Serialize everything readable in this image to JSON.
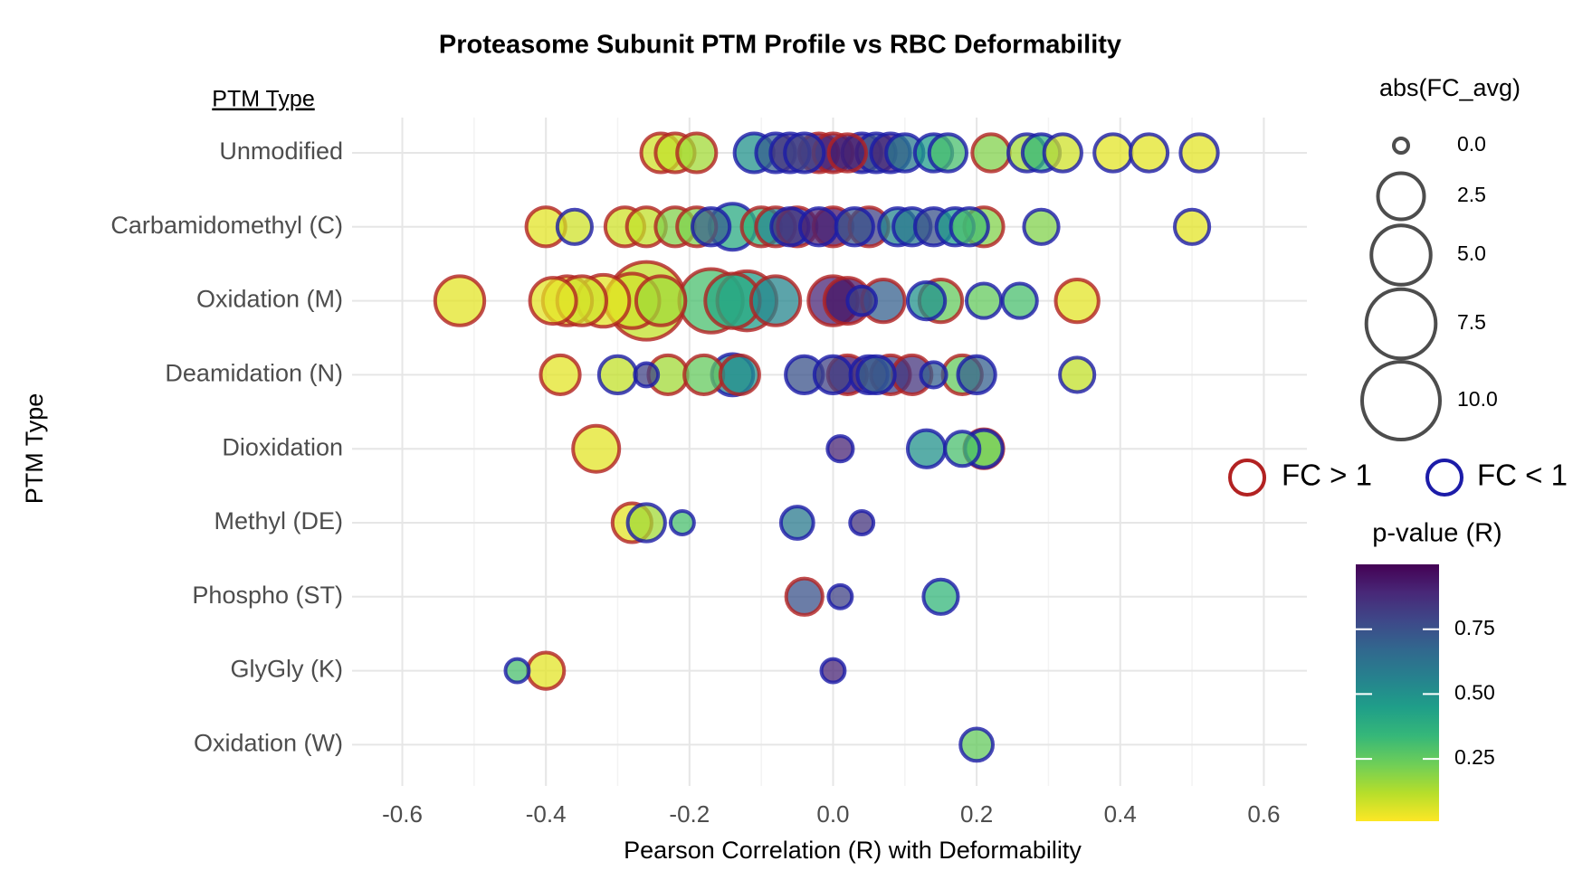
{
  "chart_data": {
    "type": "bubble",
    "title": "Proteasome Subunit PTM Profile vs RBC Deformability",
    "x_label": "Pearson Correlation (R) with Deformability",
    "y_label": "PTM Type",
    "category_header": "PTM Type",
    "categories": [
      "Unmodified",
      "Carbamidomethyl (C)",
      "Oxidation (M)",
      "Deamidation (N)",
      "Dioxidation",
      "Methyl (DE)",
      "Phospho (ST)",
      "GlyGly (K)",
      "Oxidation (W)"
    ],
    "xlim": [
      -0.67,
      0.66
    ],
    "xticks": [
      -0.6,
      -0.4,
      -0.2,
      {
        "value": 0,
        "label": "0.0"
      },
      0.2,
      0.4,
      0.6
    ],
    "grid": true,
    "legend_position": "right",
    "size_title": "abs(FC_avg)",
    "size_legend": [
      {
        "value": 0,
        "label": "0.0"
      },
      2.5,
      {
        "value": 5,
        "label": "5.0"
      },
      7.5,
      {
        "value": 10,
        "label": "10.0"
      }
    ],
    "size_lim": [
      0,
      10
    ],
    "color_title": "p-value (R)",
    "clim": [
      0.01,
      1.0
    ],
    "cticks": [
      0.25,
      {
        "value": 0.5,
        "label": "0.50"
      },
      0.75
    ],
    "series": [
      {
        "name": "FC > 1",
        "color": "#b22222",
        "category": [
          "Unmodified",
          "Unmodified",
          "Unmodified",
          "Unmodified",
          "Unmodified",
          "Unmodified",
          "Unmodified",
          "Carbamidomethyl (C)",
          "Carbamidomethyl (C)",
          "Carbamidomethyl (C)",
          "Carbamidomethyl (C)",
          "Carbamidomethyl (C)",
          "Carbamidomethyl (C)",
          "Carbamidomethyl (C)",
          "Carbamidomethyl (C)",
          "Carbamidomethyl (C)",
          "Carbamidomethyl (C)",
          "Carbamidomethyl (C)",
          "Oxidation (M)",
          "Oxidation (M)",
          "Oxidation (M)",
          "Oxidation (M)",
          "Oxidation (M)",
          "Oxidation (M)",
          "Oxidation (M)",
          "Oxidation (M)",
          "Oxidation (M)",
          "Oxidation (M)",
          "Oxidation (M)",
          "Oxidation (M)",
          "Oxidation (M)",
          "Oxidation (M)",
          "Oxidation (M)",
          "Oxidation (M)",
          "Oxidation (M)",
          "Deamidation (N)",
          "Deamidation (N)",
          "Deamidation (N)",
          "Deamidation (N)",
          "Deamidation (N)",
          "Deamidation (N)",
          "Deamidation (N)",
          "Deamidation (N)",
          "Dioxidation",
          "Dioxidation",
          "Methyl (DE)",
          "Phospho (ST)",
          "GlyGly (K)"
        ],
        "x": [
          -0.24,
          -0.22,
          -0.19,
          -0.02,
          0.0,
          0.02,
          0.22,
          -0.4,
          -0.29,
          -0.26,
          -0.22,
          -0.19,
          -0.1,
          -0.08,
          -0.05,
          0.0,
          0.05,
          0.21,
          -0.52,
          -0.39,
          -0.37,
          -0.35,
          -0.32,
          -0.28,
          -0.26,
          -0.24,
          -0.17,
          -0.14,
          -0.12,
          -0.08,
          0.0,
          0.02,
          0.07,
          0.15,
          0.34,
          -0.38,
          -0.23,
          -0.18,
          -0.13,
          0.02,
          0.08,
          0.11,
          0.18,
          -0.33,
          0.21,
          -0.28,
          -0.04,
          -0.4
        ],
        "size": [
          1.5,
          1.5,
          1.5,
          1.5,
          1.5,
          1.3,
          1.3,
          1.5,
          1.5,
          1.5,
          1.5,
          1.5,
          1.5,
          1.5,
          1.5,
          1.5,
          1.5,
          1.5,
          3,
          2.5,
          3,
          3,
          3.5,
          4,
          10,
          3,
          6,
          4,
          5,
          3,
          3,
          2.5,
          2,
          2,
          2,
          1.5,
          1.5,
          1.5,
          1.5,
          1.5,
          1.5,
          1.5,
          1.5,
          2.5,
          1.5,
          1.5,
          1.2,
          1.2
        ],
        "pvalue": [
          0.08,
          0.1,
          0.15,
          0.95,
          0.9,
          0.92,
          0.2,
          0.05,
          0.08,
          0.1,
          0.2,
          0.2,
          0.35,
          0.55,
          0.8,
          0.95,
          0.8,
          0.2,
          0.05,
          0.05,
          0.05,
          0.08,
          0.05,
          0.08,
          0.1,
          0.15,
          0.3,
          0.4,
          0.45,
          0.55,
          0.9,
          0.95,
          0.7,
          0.25,
          0.05,
          0.05,
          0.15,
          0.25,
          0.5,
          0.95,
          0.8,
          0.85,
          0.25,
          0.05,
          0.3,
          0.05,
          0.75,
          0.05
        ]
      },
      {
        "name": "FC < 1",
        "color": "#1c1ca8",
        "category": [
          "Unmodified",
          "Unmodified",
          "Unmodified",
          "Unmodified",
          "Unmodified",
          "Unmodified",
          "Unmodified",
          "Unmodified",
          "Unmodified",
          "Unmodified",
          "Unmodified",
          "Unmodified",
          "Unmodified",
          "Unmodified",
          "Unmodified",
          "Unmodified",
          "Carbamidomethyl (C)",
          "Carbamidomethyl (C)",
          "Carbamidomethyl (C)",
          "Carbamidomethyl (C)",
          "Carbamidomethyl (C)",
          "Carbamidomethyl (C)",
          "Carbamidomethyl (C)",
          "Carbamidomethyl (C)",
          "Carbamidomethyl (C)",
          "Carbamidomethyl (C)",
          "Carbamidomethyl (C)",
          "Carbamidomethyl (C)",
          "Carbamidomethyl (C)",
          "Oxidation (M)",
          "Oxidation (M)",
          "Oxidation (M)",
          "Oxidation (M)",
          "Deamidation (N)",
          "Deamidation (N)",
          "Deamidation (N)",
          "Deamidation (N)",
          "Deamidation (N)",
          "Deamidation (N)",
          "Deamidation (N)",
          "Deamidation (N)",
          "Deamidation (N)",
          "Deamidation (N)",
          "Dioxidation",
          "Dioxidation",
          "Dioxidation",
          "Dioxidation",
          "Methyl (DE)",
          "Methyl (DE)",
          "Methyl (DE)",
          "Methyl (DE)",
          "Phospho (ST)",
          "Phospho (ST)",
          "GlyGly (K)",
          "GlyGly (K)",
          "Oxidation (W)"
        ],
        "x": [
          -0.11,
          -0.08,
          -0.06,
          -0.04,
          0.04,
          0.06,
          0.08,
          0.1,
          0.14,
          0.16,
          0.27,
          0.29,
          0.32,
          0.39,
          0.44,
          0.51,
          -0.36,
          -0.17,
          -0.14,
          -0.06,
          -0.02,
          0.03,
          0.09,
          0.11,
          0.14,
          0.17,
          0.19,
          0.29,
          0.5,
          0.04,
          0.13,
          0.21,
          0.26,
          -0.3,
          -0.26,
          -0.14,
          -0.04,
          0.0,
          0.05,
          0.06,
          0.14,
          0.2,
          0.34,
          0.01,
          0.13,
          0.18,
          0.21,
          -0.26,
          -0.21,
          -0.05,
          0.04,
          0.01,
          0.15,
          -0.44,
          0.0,
          0.2
        ],
        "size": [
          1.5,
          1.5,
          1.5,
          1.5,
          1.5,
          1.5,
          1.5,
          1.3,
          1.3,
          1.3,
          1.3,
          1.3,
          1.3,
          1.3,
          1.3,
          1.3,
          1,
          1.3,
          2.5,
          1.3,
          1.3,
          1.3,
          1.3,
          1.3,
          1.3,
          1.3,
          1.3,
          1,
          1,
          0.5,
          1.3,
          1,
          1,
          1.3,
          0.2,
          1.8,
          1.3,
          1.3,
          1.3,
          1.3,
          0.3,
          1.3,
          1,
          0.3,
          1.3,
          1,
          1.3,
          1.3,
          0.2,
          0.8,
          0.2,
          0.2,
          1,
          0.2,
          0.2,
          0.8
        ],
        "pvalue": [
          0.5,
          0.7,
          0.85,
          0.8,
          0.85,
          0.75,
          0.9,
          0.6,
          0.45,
          0.3,
          0.15,
          0.35,
          0.08,
          0.05,
          0.05,
          0.05,
          0.08,
          0.7,
          0.4,
          0.85,
          0.9,
          0.75,
          0.55,
          0.6,
          0.75,
          0.45,
          0.3,
          0.2,
          0.05,
          0.8,
          0.5,
          0.25,
          0.3,
          0.1,
          0.8,
          0.55,
          0.75,
          0.8,
          0.85,
          0.7,
          0.7,
          0.7,
          0.1,
          0.9,
          0.5,
          0.3,
          0.2,
          0.15,
          0.3,
          0.6,
          0.85,
          0.8,
          0.35,
          0.3,
          0.9,
          0.25
        ]
      }
    ]
  }
}
